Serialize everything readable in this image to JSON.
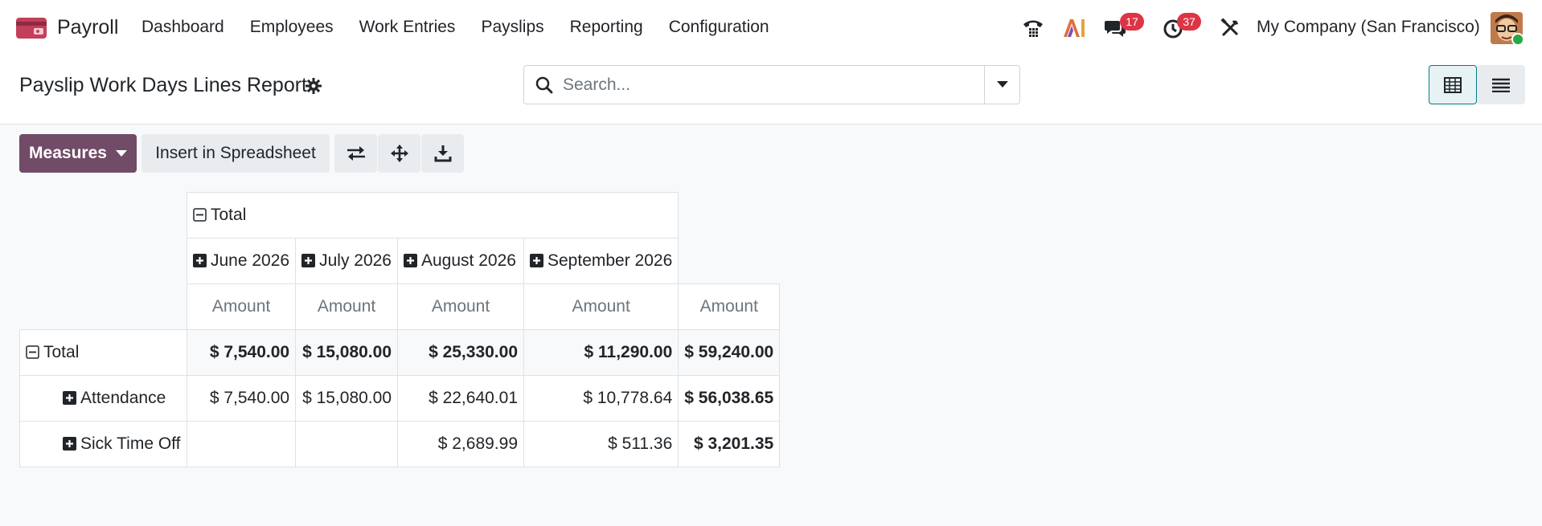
{
  "navbar": {
    "app_name": "Payroll",
    "menu": [
      "Dashboard",
      "Employees",
      "Work Entries",
      "Payslips",
      "Reporting",
      "Configuration"
    ],
    "messages_count": "17",
    "activities_count": "37",
    "company": "My Company (San Francisco)"
  },
  "control": {
    "title": "Payslip Work Days Lines Report",
    "search_placeholder": "Search..."
  },
  "toolbar": {
    "measures_label": "Measures",
    "insert_label": "Insert in Spreadsheet"
  },
  "pivot": {
    "col_total": "Total",
    "months": [
      "June 2026",
      "July 2026",
      "August 2026",
      "September 2026"
    ],
    "measure": "Amount",
    "rows": [
      {
        "label": "Total",
        "values": [
          "$ 7,540.00",
          "$ 15,080.00",
          "$ 25,330.00",
          "$ 11,290.00",
          "$ 59,240.00"
        ]
      },
      {
        "label": "Attendance",
        "values": [
          "$ 7,540.00",
          "$ 15,080.00",
          "$ 22,640.01",
          "$ 10,778.64",
          "$ 56,038.65"
        ]
      },
      {
        "label": "Sick Time Off",
        "values": [
          "",
          "",
          "$ 2,689.99",
          "$ 511.36",
          "$ 3,201.35"
        ]
      }
    ]
  },
  "colors": {
    "primary": "#714b67",
    "accent": "#017e84",
    "badge": "#dc3545"
  }
}
